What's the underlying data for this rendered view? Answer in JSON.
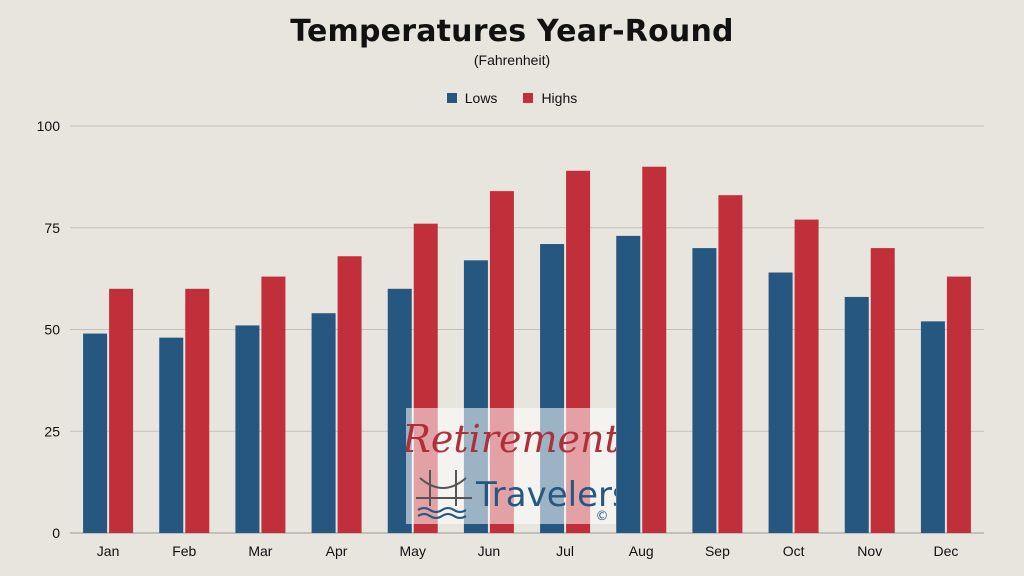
{
  "chart_data": {
    "type": "bar",
    "title": "Temperatures Year-Round",
    "subtitle": "(Fahrenheit)",
    "categories": [
      "Jan",
      "Feb",
      "Mar",
      "Apr",
      "May",
      "Jun",
      "Jul",
      "Aug",
      "Sep",
      "Oct",
      "Nov",
      "Dec"
    ],
    "series": [
      {
        "name": "Lows",
        "color": "#255780",
        "values": [
          49,
          48,
          51,
          54,
          60,
          67,
          71,
          73,
          70,
          64,
          58,
          52
        ]
      },
      {
        "name": "Highs",
        "color": "#c1303a",
        "values": [
          60,
          60,
          63,
          68,
          76,
          84,
          89,
          90,
          83,
          77,
          70,
          63
        ]
      }
    ],
    "ylim": [
      0,
      100
    ],
    "yticks": [
      0,
      25,
      50,
      75,
      100
    ],
    "grid": true,
    "legend_position": "top"
  },
  "watermark": {
    "line1": "Retirement",
    "line2": "Travelers",
    "mark": "©",
    "icon": "golden-gate-bridge-icon"
  }
}
